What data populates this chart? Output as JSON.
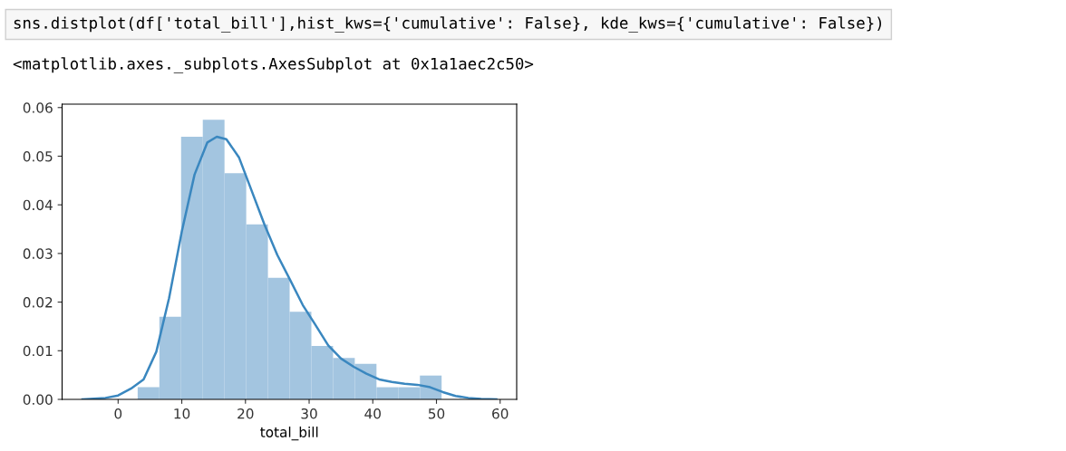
{
  "chart_data": {
    "type": "histogram",
    "xlabel": "total_bill",
    "bins": [
      3.07,
      6.48,
      9.89,
      13.3,
      16.71,
      20.12,
      23.53,
      26.94,
      30.35,
      33.76,
      37.17,
      40.58,
      43.99,
      47.4,
      50.81
    ],
    "values": [
      0.0025,
      0.017,
      0.054,
      0.0575,
      0.0465,
      0.036,
      0.025,
      0.018,
      0.011,
      0.0085,
      0.0073,
      0.0025,
      0.0025,
      0.0049
    ],
    "color": "#a3c5e0",
    "series": [
      {
        "type": "line",
        "color": "#3a87bf",
        "x": [
          -5.6,
          -2,
          0,
          2,
          4,
          6,
          8,
          10,
          12,
          14,
          15.5,
          17,
          19,
          21,
          23,
          25,
          27,
          29,
          31,
          33,
          35,
          37,
          39,
          41,
          43,
          45,
          47,
          49,
          51,
          53,
          55,
          57,
          59.4
        ],
        "values": [
          0,
          0.0003,
          0.0008,
          0.0022,
          0.0041,
          0.0098,
          0.0208,
          0.0345,
          0.0462,
          0.0528,
          0.054,
          0.0535,
          0.0497,
          0.0428,
          0.0359,
          0.0297,
          0.0246,
          0.0194,
          0.0153,
          0.0111,
          0.0084,
          0.0067,
          0.0053,
          0.0041,
          0.0036,
          0.0032,
          0.003,
          0.0025,
          0.0015,
          0.0007,
          0.0003,
          0.0001,
          0
        ]
      }
    ],
    "xlim": [
      -8.8,
      62.6
    ],
    "xticks": [
      0,
      10,
      20,
      30,
      40,
      50,
      60
    ],
    "ylim": [
      0,
      0.0607
    ],
    "yticks": [
      {
        "value": 0,
        "label": "0.00"
      },
      {
        "value": 0.01,
        "label": "0.01"
      },
      {
        "value": 0.02,
        "label": "0.02"
      },
      {
        "value": 0.03,
        "label": "0.03"
      },
      {
        "value": 0.04,
        "label": "0.04"
      },
      {
        "value": 0.05,
        "label": "0.05"
      },
      {
        "value": 0.06,
        "label": "0.06"
      }
    ],
    "grid": false,
    "annotations": [
      "sns.distplot(df['total_bill'],hist_kws={'cumulative': False}, kde_kws={'cumulative': False})",
      "<matplotlib.axes._subplots.AxesSubplot at 0x1a1aec2c50>"
    ]
  }
}
